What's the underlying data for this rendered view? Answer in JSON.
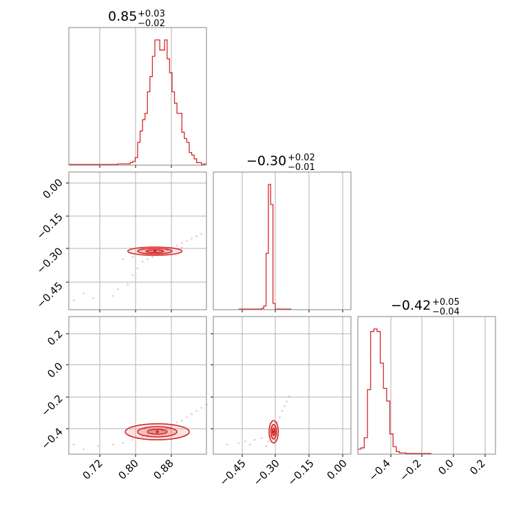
{
  "colors": {
    "accent": "#d62728",
    "grid": "#b0b0b0",
    "frame": "#808080",
    "background": "#ffffff"
  },
  "chart_data": [
    {
      "type": "bar",
      "panel": "hist-param-1",
      "title": {
        "value": "0.85",
        "plus": "+0.03",
        "minus": "−0.02"
      },
      "xlim": [
        0.67,
        0.95
      ],
      "grid": true,
      "bins": [
        [
          0.67,
          0.675
        ],
        [
          0.675,
          0.68
        ],
        [
          0.68,
          0.685
        ],
        [
          0.685,
          0.69
        ],
        [
          0.69,
          0.695
        ],
        [
          0.695,
          0.7
        ],
        [
          0.7,
          0.705
        ],
        [
          0.705,
          0.71
        ],
        [
          0.71,
          0.715
        ],
        [
          0.715,
          0.72
        ],
        [
          0.72,
          0.73
        ],
        [
          0.73,
          0.74
        ],
        [
          0.74,
          0.75
        ],
        [
          0.75,
          0.76
        ],
        [
          0.76,
          0.77
        ],
        [
          0.77,
          0.78
        ],
        [
          0.78,
          0.79
        ],
        [
          0.79,
          0.795
        ],
        [
          0.795,
          0.8
        ],
        [
          0.8,
          0.805
        ],
        [
          0.805,
          0.81
        ],
        [
          0.81,
          0.815
        ],
        [
          0.815,
          0.82
        ],
        [
          0.82,
          0.825
        ],
        [
          0.825,
          0.83
        ],
        [
          0.83,
          0.835
        ],
        [
          0.835,
          0.84
        ],
        [
          0.84,
          0.845
        ],
        [
          0.845,
          0.85
        ],
        [
          0.85,
          0.855
        ],
        [
          0.855,
          0.86
        ],
        [
          0.86,
          0.865
        ],
        [
          0.865,
          0.87
        ],
        [
          0.87,
          0.875
        ],
        [
          0.875,
          0.88
        ],
        [
          0.88,
          0.885
        ],
        [
          0.885,
          0.89
        ],
        [
          0.89,
          0.895
        ],
        [
          0.895,
          0.9
        ],
        [
          0.9,
          0.905
        ],
        [
          0.905,
          0.91
        ],
        [
          0.91,
          0.915
        ],
        [
          0.915,
          0.92
        ],
        [
          0.92,
          0.925
        ],
        [
          0.925,
          0.93
        ],
        [
          0.93,
          0.935
        ],
        [
          0.935,
          0.94
        ],
        [
          0.94,
          0.945
        ],
        [
          0.945,
          0.95
        ]
      ],
      "values": [
        0.005,
        0.005,
        0.005,
        0.005,
        0.005,
        0.005,
        0.005,
        0.005,
        0.005,
        0.005,
        0.005,
        0.005,
        0.005,
        0.005,
        0.005,
        0.01,
        0.01,
        0.01,
        0.02,
        0.03,
        0.06,
        0.18,
        0.27,
        0.36,
        0.41,
        0.58,
        0.7,
        0.86,
        0.99,
        0.99,
        0.91,
        0.91,
        0.99,
        0.84,
        0.73,
        0.58,
        0.49,
        0.41,
        0.41,
        0.26,
        0.21,
        0.18,
        0.1,
        0.08,
        0.05,
        0.02,
        0.02,
        0.005,
        0.01
      ]
    },
    {
      "type": "bar",
      "panel": "hist-param-2",
      "title": {
        "value": "−0.30",
        "plus": "+0.02",
        "minus": "−0.01"
      },
      "xlim": [
        -0.56,
        0.04
      ],
      "grid": true,
      "bins": [
        [
          -0.45,
          -0.44
        ],
        [
          -0.44,
          -0.43
        ],
        [
          -0.43,
          -0.42
        ],
        [
          -0.42,
          -0.41
        ],
        [
          -0.41,
          -0.4
        ],
        [
          -0.4,
          -0.39
        ],
        [
          -0.39,
          -0.38
        ],
        [
          -0.38,
          -0.37
        ],
        [
          -0.37,
          -0.36
        ],
        [
          -0.36,
          -0.35
        ],
        [
          -0.35,
          -0.34
        ],
        [
          -0.34,
          -0.33
        ],
        [
          -0.33,
          -0.32
        ],
        [
          -0.32,
          -0.31
        ],
        [
          -0.31,
          -0.3
        ],
        [
          -0.3,
          -0.29
        ],
        [
          -0.29,
          -0.28
        ],
        [
          -0.28,
          -0.27
        ],
        [
          -0.27,
          -0.26
        ],
        [
          -0.26,
          -0.25
        ],
        [
          -0.25,
          -0.24
        ],
        [
          -0.24,
          -0.23
        ],
        [
          -0.23,
          -0.22
        ]
      ],
      "values": [
        0.005,
        0.005,
        0.005,
        0.005,
        0.005,
        0.005,
        0.005,
        0.005,
        0.005,
        0.005,
        0.01,
        0.03,
        0.45,
        1.0,
        0.84,
        0.05,
        0.005,
        0.005,
        0.005,
        0.005,
        0.005,
        0.005,
        0.005
      ]
    },
    {
      "type": "bar",
      "panel": "hist-param-3",
      "title": {
        "value": "−0.42",
        "plus": "+0.05",
        "minus": "−0.04"
      },
      "xlim": [
        -0.56,
        0.3
      ],
      "grid": true,
      "bins": [
        [
          -0.56,
          -0.54
        ],
        [
          -0.54,
          -0.52
        ],
        [
          -0.52,
          -0.5
        ],
        [
          -0.5,
          -0.48
        ],
        [
          -0.48,
          -0.46
        ],
        [
          -0.46,
          -0.44
        ],
        [
          -0.44,
          -0.42
        ],
        [
          -0.42,
          -0.4
        ],
        [
          -0.4,
          -0.38
        ],
        [
          -0.38,
          -0.36
        ],
        [
          -0.36,
          -0.34
        ],
        [
          -0.34,
          -0.32
        ],
        [
          -0.32,
          -0.3
        ],
        [
          -0.3,
          -0.28
        ],
        [
          -0.28,
          -0.26
        ],
        [
          -0.26,
          -0.24
        ],
        [
          -0.24,
          -0.22
        ],
        [
          -0.22,
          -0.2
        ],
        [
          -0.2,
          -0.18
        ],
        [
          -0.18,
          -0.16
        ],
        [
          -0.16,
          -0.14
        ],
        [
          -0.14,
          -0.12
        ],
        [
          -0.12,
          -0.1
        ]
      ],
      "values": [
        0.04,
        0.05,
        0.13,
        0.51,
        0.97,
        0.99,
        0.97,
        0.72,
        0.52,
        0.42,
        0.16,
        0.06,
        0.02,
        0.01,
        0.01,
        0.005,
        0.005,
        0.005,
        0.005,
        0.005,
        0.005,
        0.005,
        0.005
      ]
    },
    {
      "type": "scatter",
      "panel": "joint-param-1-param-2",
      "xlim": [
        0.67,
        0.95
      ],
      "ylim": [
        -0.56,
        0.04
      ],
      "grid": true,
      "yticks": [
        "0.00",
        "−0.15",
        "−0.30",
        "−0.45"
      ],
      "samples": [
        [
          0.68,
          -0.52
        ],
        [
          0.7,
          -0.49
        ],
        [
          0.72,
          -0.51
        ],
        [
          0.76,
          -0.5
        ],
        [
          0.77,
          -0.47
        ],
        [
          0.79,
          -0.45
        ],
        [
          0.8,
          -0.41
        ],
        [
          0.81,
          -0.38
        ],
        [
          0.82,
          -0.35
        ],
        [
          0.83,
          -0.34
        ],
        [
          0.84,
          -0.33
        ],
        [
          0.85,
          -0.32
        ],
        [
          0.86,
          -0.31
        ],
        [
          0.87,
          -0.3
        ],
        [
          0.88,
          -0.29
        ],
        [
          0.89,
          -0.28
        ],
        [
          0.9,
          -0.27
        ],
        [
          0.91,
          -0.26
        ],
        [
          0.92,
          -0.25
        ],
        [
          0.93,
          -0.24
        ],
        [
          0.94,
          -0.23
        ],
        [
          0.78,
          -0.34
        ],
        [
          0.8,
          -0.33
        ],
        [
          0.9,
          -0.29
        ],
        [
          0.86,
          -0.29
        ],
        [
          0.83,
          -0.32
        ]
      ],
      "contours": [
        {
          "center": [
            0.845,
            -0.305
          ],
          "half_width": [
            0.055,
            0.018
          ]
        },
        {
          "center": [
            0.845,
            -0.305
          ],
          "half_width": [
            0.035,
            0.012
          ]
        },
        {
          "center": [
            0.845,
            -0.305
          ],
          "half_width": [
            0.018,
            0.006
          ]
        }
      ]
    },
    {
      "type": "scatter",
      "panel": "joint-param-1-param-3",
      "xlim": [
        0.67,
        0.95
      ],
      "ylim": [
        -0.56,
        0.3
      ],
      "grid": true,
      "xticks": [
        "0.72",
        "0.80",
        "0.88"
      ],
      "yticks": [
        "0.2",
        "0.0",
        "−0.2",
        "−0.4"
      ],
      "samples": [
        [
          0.68,
          -0.5
        ],
        [
          0.7,
          -0.53
        ],
        [
          0.73,
          -0.51
        ],
        [
          0.76,
          -0.5
        ],
        [
          0.78,
          -0.49
        ],
        [
          0.8,
          -0.47
        ],
        [
          0.81,
          -0.46
        ],
        [
          0.82,
          -0.45
        ],
        [
          0.83,
          -0.44
        ],
        [
          0.84,
          -0.43
        ],
        [
          0.85,
          -0.42
        ],
        [
          0.86,
          -0.41
        ],
        [
          0.87,
          -0.4
        ],
        [
          0.88,
          -0.38
        ],
        [
          0.89,
          -0.36
        ],
        [
          0.9,
          -0.35
        ],
        [
          0.91,
          -0.33
        ],
        [
          0.92,
          -0.31
        ],
        [
          0.93,
          -0.29
        ],
        [
          0.94,
          -0.27
        ],
        [
          0.95,
          -0.25
        ]
      ],
      "contours": [
        {
          "center": [
            0.85,
            -0.42
          ],
          "half_width": [
            0.065,
            0.05
          ]
        },
        {
          "center": [
            0.85,
            -0.42
          ],
          "half_width": [
            0.04,
            0.032
          ]
        },
        {
          "center": [
            0.85,
            -0.42
          ],
          "half_width": [
            0.02,
            0.015
          ]
        }
      ]
    },
    {
      "type": "scatter",
      "panel": "joint-param-2-param-3",
      "xlim": [
        -0.56,
        0.04
      ],
      "ylim": [
        -0.56,
        0.3
      ],
      "grid": true,
      "xticks": [
        "−0.45",
        "−0.30",
        "−0.15",
        "0.00"
      ],
      "samples": [
        [
          -0.5,
          -0.5
        ],
        [
          -0.45,
          -0.49
        ],
        [
          -0.42,
          -0.48
        ],
        [
          -0.38,
          -0.47
        ],
        [
          -0.35,
          -0.46
        ],
        [
          -0.32,
          -0.48
        ],
        [
          -0.31,
          -0.45
        ],
        [
          -0.3,
          -0.42
        ],
        [
          -0.29,
          -0.39
        ],
        [
          -0.28,
          -0.36
        ],
        [
          -0.27,
          -0.33
        ],
        [
          -0.26,
          -0.29
        ],
        [
          -0.25,
          -0.26
        ],
        [
          -0.24,
          -0.23
        ],
        [
          -0.23,
          -0.2
        ],
        [
          -0.33,
          -0.51
        ],
        [
          -0.4,
          -0.5
        ]
      ],
      "contours": [
        {
          "center": [
            -0.297,
            -0.42
          ],
          "half_width": [
            0.02,
            0.07
          ]
        },
        {
          "center": [
            -0.297,
            -0.42
          ],
          "half_width": [
            0.012,
            0.045
          ]
        },
        {
          "center": [
            -0.297,
            -0.42
          ],
          "half_width": [
            0.006,
            0.022
          ]
        }
      ]
    },
    {
      "type": "axis",
      "panel": "hist-param-3-axis",
      "xticks": [
        "−0.4",
        "−0.2",
        "0.0",
        "0.2"
      ]
    }
  ]
}
